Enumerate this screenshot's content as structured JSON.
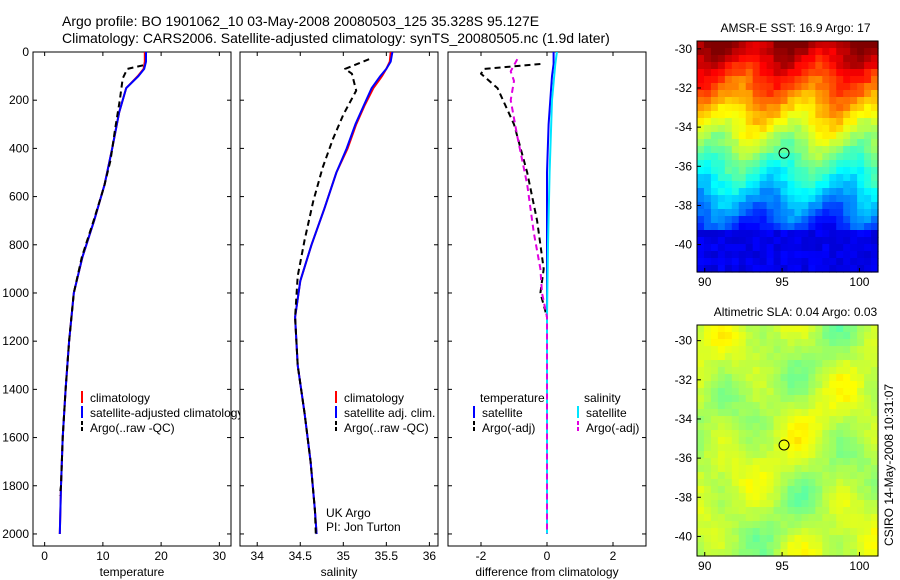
{
  "title_line1": "Argo profile: BO 1901062_10 03-May-2008 20080503_125 35.328S 95.127E",
  "title_line2": "Climatology: CARS2006. Satellite-adjusted climatology: synTS_20080505.nc (1.9d later)",
  "credit_side": "CSIRO 14-May-2008 10:31:07",
  "colors": {
    "climatology": "#ff0000",
    "satellite": "#0000ff",
    "argo": "#000000",
    "satellite_salinity": "#00e5ff",
    "argo_salinity_adj": "#e000e0"
  },
  "chart_data": [
    {
      "type": "line",
      "xlabel": "temperature",
      "y_reversed": true,
      "xlim": [
        -2,
        32
      ],
      "ylim": [
        0,
        2050
      ],
      "xticks": [
        0,
        10,
        20,
        30
      ],
      "yticks": [
        0,
        200,
        400,
        600,
        800,
        1000,
        1200,
        1400,
        1600,
        1800,
        2000
      ],
      "legend": [
        "climatology",
        "satellite-adjusted climatology",
        "Argo(..raw -QC)"
      ],
      "legend_placement": "lower-right",
      "series": [
        {
          "name": "climatology",
          "color": "#ff0000",
          "dash": "",
          "points": [
            [
              17.2,
              0
            ],
            [
              17.2,
              40
            ],
            [
              17.0,
              70
            ],
            [
              16.0,
              100
            ],
            [
              14.0,
              150
            ],
            [
              12.8,
              250
            ],
            [
              11.6,
              400
            ],
            [
              10.3,
              550
            ],
            [
              8.5,
              700
            ],
            [
              6.5,
              850
            ],
            [
              5.0,
              1000
            ],
            [
              4.2,
              1200
            ],
            [
              3.6,
              1400
            ],
            [
              3.1,
              1600
            ],
            [
              2.8,
              1800
            ],
            [
              2.6,
              2000
            ]
          ]
        },
        {
          "name": "satellite-adjusted climatology",
          "color": "#0000ff",
          "dash": "",
          "points": [
            [
              17.4,
              0
            ],
            [
              17.4,
              40
            ],
            [
              17.1,
              70
            ],
            [
              16.1,
              100
            ],
            [
              14.0,
              150
            ],
            [
              12.8,
              250
            ],
            [
              11.6,
              400
            ],
            [
              10.3,
              550
            ],
            [
              8.5,
              700
            ],
            [
              6.5,
              850
            ],
            [
              5.0,
              1000
            ],
            [
              4.2,
              1200
            ],
            [
              3.6,
              1400
            ],
            [
              3.1,
              1600
            ],
            [
              2.8,
              1800
            ],
            [
              2.6,
              2000
            ]
          ]
        },
        {
          "name": "Argo(..raw -QC)",
          "color": "#000000",
          "dash": "6 4",
          "points": [
            [
              16.9,
              55
            ],
            [
              14.2,
              70
            ],
            [
              13.4,
              110
            ],
            [
              12.9,
              200
            ],
            [
              12.1,
              320
            ],
            [
              11.3,
              450
            ],
            [
              10.2,
              560
            ],
            [
              8.4,
              700
            ],
            [
              6.4,
              850
            ],
            [
              5.0,
              1000
            ],
            [
              4.2,
              1200
            ],
            [
              3.6,
              1400
            ],
            [
              3.1,
              1600
            ],
            [
              2.8,
              1800
            ],
            [
              2.6,
              1840
            ]
          ]
        }
      ]
    },
    {
      "type": "line",
      "xlabel": "salinity",
      "y_reversed": true,
      "xlim": [
        33.8,
        36.1
      ],
      "ylim": [
        0,
        2050
      ],
      "xticks": [
        34,
        34.5,
        35,
        35.5,
        36
      ],
      "legend": [
        "climatology",
        "satellite adj. clim.",
        "Argo(..raw -QC)"
      ],
      "legend_placement": "lower-right",
      "annotations": [
        "UK Argo",
        "PI: Jon Turton"
      ],
      "series": [
        {
          "name": "climatology",
          "color": "#ff0000",
          "dash": "",
          "points": [
            [
              35.55,
              0
            ],
            [
              35.54,
              40
            ],
            [
              35.5,
              70
            ],
            [
              35.45,
              100
            ],
            [
              35.35,
              150
            ],
            [
              35.25,
              220
            ],
            [
              35.15,
              300
            ],
            [
              35.05,
              400
            ],
            [
              34.92,
              500
            ],
            [
              34.78,
              650
            ],
            [
              34.63,
              800
            ],
            [
              34.5,
              950
            ],
            [
              34.44,
              1100
            ],
            [
              34.47,
              1300
            ],
            [
              34.55,
              1500
            ],
            [
              34.62,
              1700
            ],
            [
              34.67,
              1900
            ],
            [
              34.69,
              2000
            ]
          ]
        },
        {
          "name": "satellite adj. clim.",
          "color": "#0000ff",
          "dash": "",
          "points": [
            [
              35.57,
              0
            ],
            [
              35.55,
              40
            ],
            [
              35.5,
              70
            ],
            [
              35.43,
              100
            ],
            [
              35.33,
              150
            ],
            [
              35.24,
              220
            ],
            [
              35.14,
              300
            ],
            [
              35.04,
              400
            ],
            [
              34.92,
              500
            ],
            [
              34.78,
              650
            ],
            [
              34.63,
              800
            ],
            [
              34.5,
              950
            ],
            [
              34.44,
              1100
            ],
            [
              34.47,
              1300
            ],
            [
              34.55,
              1500
            ],
            [
              34.62,
              1700
            ],
            [
              34.67,
              1900
            ],
            [
              34.69,
              2000
            ]
          ]
        },
        {
          "name": "Argo(..raw -QC)",
          "color": "#000000",
          "dash": "6 4",
          "points": [
            [
              35.3,
              30
            ],
            [
              35.02,
              70
            ],
            [
              35.1,
              90
            ],
            [
              35.15,
              160
            ],
            [
              35.0,
              260
            ],
            [
              34.88,
              360
            ],
            [
              34.76,
              480
            ],
            [
              34.65,
              620
            ],
            [
              34.55,
              780
            ],
            [
              34.47,
              930
            ],
            [
              34.44,
              1100
            ],
            [
              34.47,
              1300
            ],
            [
              34.55,
              1500
            ],
            [
              34.62,
              1700
            ],
            [
              34.67,
              1900
            ],
            [
              34.68,
              2000
            ]
          ]
        }
      ]
    },
    {
      "type": "line",
      "xlabel": "difference from climatology",
      "y_reversed": true,
      "xlim": [
        -3,
        3
      ],
      "ylim": [
        0,
        2050
      ],
      "xticks": [
        -2,
        0,
        2
      ],
      "legend": [
        "temperature",
        "satellite",
        "Argo(-adj)",
        "salinity",
        "satellite",
        "Argo(-adj)"
      ],
      "legend_placement": "lower-center",
      "series": [
        {
          "name": "temperature satellite",
          "color": "#0000ff",
          "dash": "",
          "points": [
            [
              0.2,
              0
            ],
            [
              0.2,
              50
            ],
            [
              0.15,
              100
            ],
            [
              0.05,
              300
            ],
            [
              0,
              500
            ],
            [
              0,
              2000
            ]
          ]
        },
        {
          "name": "temperature Argo(-adj)",
          "color": "#000000",
          "dash": "6 4",
          "points": [
            [
              -0.2,
              50
            ],
            [
              -1.9,
              70
            ],
            [
              -2.0,
              90
            ],
            [
              -1.5,
              150
            ],
            [
              -1.0,
              300
            ],
            [
              -0.6,
              500
            ],
            [
              -0.3,
              700
            ],
            [
              -0.1,
              900
            ],
            [
              -0.2,
              1000
            ],
            [
              0,
              1100
            ],
            [
              0,
              1800
            ]
          ]
        },
        {
          "name": "salinity satellite",
          "color": "#00e5ff",
          "dash": "",
          "points": [
            [
              0.3,
              0
            ],
            [
              0.25,
              50
            ],
            [
              0.15,
              200
            ],
            [
              0.08,
              500
            ],
            [
              0.03,
              800
            ],
            [
              0,
              1100
            ],
            [
              0,
              2000
            ]
          ]
        },
        {
          "name": "salinity Argo(-adj)",
          "color": "#e000e0",
          "dash": "6 4",
          "points": [
            [
              -0.9,
              30
            ],
            [
              -1.1,
              80
            ],
            [
              -1.0,
              120
            ],
            [
              -1.1,
              200
            ],
            [
              -0.9,
              350
            ],
            [
              -0.6,
              550
            ],
            [
              -0.4,
              750
            ],
            [
              -0.2,
              900
            ],
            [
              -0.15,
              1000
            ],
            [
              0,
              1100
            ],
            [
              0,
              2000
            ]
          ]
        }
      ]
    },
    {
      "type": "heatmap",
      "title": "AMSR-E SST: 16.9 Argo: 17",
      "xlim": [
        89.5,
        101.2
      ],
      "ylim": [
        -41.4,
        -29.6
      ],
      "xticks": [
        90,
        95,
        100
      ],
      "yticks": [
        -30,
        -32,
        -34,
        -36,
        -38,
        -40
      ],
      "marker": [
        95.127,
        -35.328
      ],
      "colormap": "jet",
      "value_range": [
        13.5,
        20.5
      ]
    },
    {
      "type": "heatmap",
      "title": "Altimetric SLA: 0.04 Argo: 0.03",
      "xlim": [
        89.5,
        101.2
      ],
      "ylim": [
        -41.0,
        -29.2
      ],
      "xticks": [
        90,
        95,
        100
      ],
      "yticks": [
        -30,
        -32,
        -34,
        -36,
        -38,
        -40
      ],
      "marker": [
        95.127,
        -35.328
      ],
      "colormap": "jet",
      "value_range": [
        -0.4,
        0.4
      ]
    }
  ]
}
